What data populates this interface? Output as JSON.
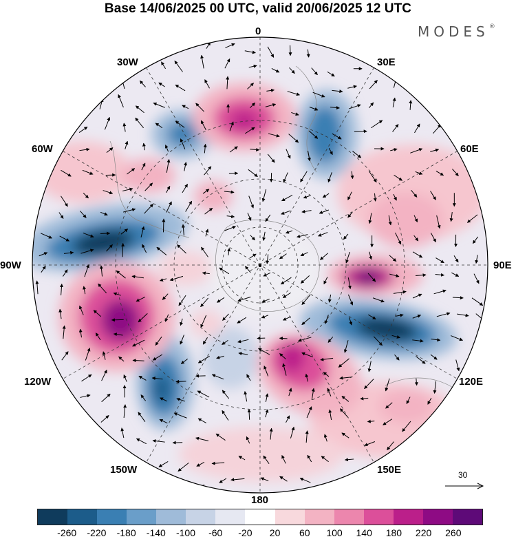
{
  "title": "Base 14/06/2025 00 UTC, valid 20/06/2025 12 UTC",
  "brand": {
    "name": "MODES",
    "mark": "®"
  },
  "map": {
    "projection": "south-polar-stereographic",
    "longitude_labels": {
      "top": "0",
      "top_right": "30E",
      "right_upper": "60E",
      "right": "90E",
      "right_lower": "120E",
      "bottom_right": "150E",
      "bottom": "180",
      "bottom_left": "150W",
      "left_lower": "120W",
      "left": "90W",
      "left_upper": "60W",
      "top_left": "30W"
    },
    "reference_vector": "30",
    "colors": {
      "negative_max": "#0b3a5b",
      "positive_max": "#5a006e",
      "neutral": "#ffffff"
    }
  },
  "colorbar": {
    "ticks": [
      "-260",
      "-220",
      "-180",
      "-140",
      "-100",
      "-60",
      "-20",
      "20",
      "60",
      "100",
      "140",
      "180",
      "220",
      "260"
    ],
    "colors": [
      "#0f3b5c",
      "#1c5c8a",
      "#3a7fb3",
      "#6a9ec9",
      "#9fbbd9",
      "#c7d3e6",
      "#e6e8f2",
      "#ffffff",
      "#f8d9dd",
      "#f3b3c3",
      "#ec86ad",
      "#dc4f9a",
      "#bb1f8a",
      "#8e0b84",
      "#5e0a78"
    ]
  }
}
